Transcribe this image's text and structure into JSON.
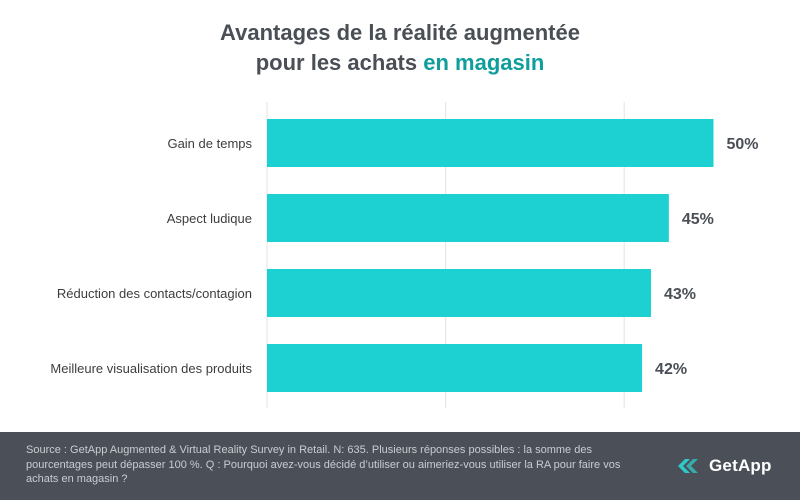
{
  "title": {
    "line1": "Avantages de la réalité augmentée",
    "line2_prefix": "pour les achats ",
    "line2_highlight": "en magasin"
  },
  "colors": {
    "bar": "#1dd0d1",
    "title": "#4a4f56",
    "title_accent": "#0f9e9c",
    "value_label": "#4a4f56",
    "category_label": "#3d3d3d",
    "gridline": "#e3e3e3",
    "footer_bg": "#4b5058",
    "footer_text": "#c9ccd1",
    "logo_accent": "#2ec9c8"
  },
  "chart_data": {
    "type": "bar",
    "orientation": "horizontal",
    "categories": [
      "Gain de temps",
      "Aspect ludique",
      "Réduction des contacts/contagion",
      "Meilleure visualisation des produits"
    ],
    "values": [
      50,
      45,
      43,
      42
    ],
    "value_labels": [
      "50%",
      "45%",
      "43%",
      "42%"
    ],
    "xlim": [
      0,
      60
    ],
    "grid": true,
    "legend": "none"
  },
  "footer": {
    "source": "Source : GetApp Augmented & Virtual Reality Survey in Retail. N: 635. Plusieurs réponses possibles : la somme des pourcentages peut dépasser 100 %. Q : Pourquoi avez-vous décidé d’utiliser ou aimeriez-vous utiliser la RA pour faire vos achats en magasin ?",
    "logo_text": "GetApp",
    "logo_icon": "getapp-chevrons-icon"
  }
}
